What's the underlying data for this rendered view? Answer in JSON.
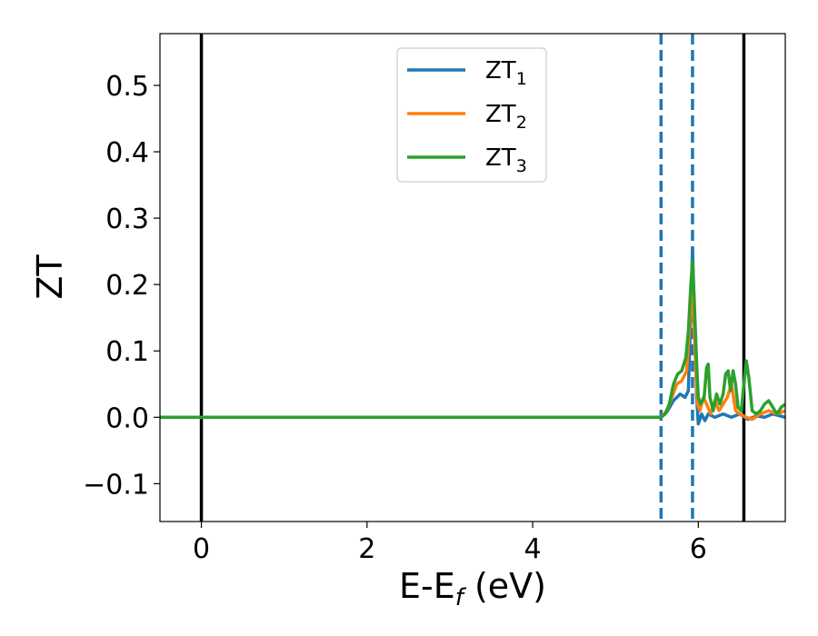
{
  "chart_data": {
    "type": "line",
    "xlabel": {
      "main": "E-E",
      "sub": "f",
      "unit": " (eV)"
    },
    "ylabel": "ZT",
    "xlim": [
      -0.5,
      7.05
    ],
    "ylim": [
      -0.157,
      0.578
    ],
    "xticks": [
      0,
      2,
      4,
      6
    ],
    "xtick_labels": [
      "0",
      "2",
      "4",
      "6"
    ],
    "yticks": [
      -0.1,
      0.0,
      0.1,
      0.2,
      0.3,
      0.4,
      0.5
    ],
    "ytick_labels": [
      "−0.1",
      "0.0",
      "0.1",
      "0.2",
      "0.3",
      "0.4",
      "0.5"
    ],
    "legend": {
      "position": "top-center",
      "entries": [
        {
          "base": "ZT",
          "sub": "1"
        },
        {
          "base": "ZT",
          "sub": "2"
        },
        {
          "base": "ZT",
          "sub": "3"
        }
      ]
    },
    "vlines": [
      {
        "x": 0.0,
        "style": "solid",
        "color": "#000000"
      },
      {
        "x": 5.55,
        "style": "dashed",
        "color": "#1f77b4"
      },
      {
        "x": 5.93,
        "style": "dashed",
        "color": "#1f77b4"
      },
      {
        "x": 6.55,
        "style": "solid",
        "color": "#000000"
      }
    ],
    "series": [
      {
        "color": "#1f77b4",
        "points": [
          [
            -0.5,
            0
          ],
          [
            5.55,
            0
          ],
          [
            5.62,
            0.008
          ],
          [
            5.7,
            0.025
          ],
          [
            5.78,
            0.035
          ],
          [
            5.84,
            0.03
          ],
          [
            5.88,
            0.04
          ],
          [
            5.9,
            0.12
          ],
          [
            5.93,
            0.255
          ],
          [
            5.96,
            0.12
          ],
          [
            5.98,
            0.03
          ],
          [
            6.0,
            -0.01
          ],
          [
            6.04,
            0.005
          ],
          [
            6.08,
            -0.005
          ],
          [
            6.12,
            0.005
          ],
          [
            6.2,
            0.0
          ],
          [
            6.3,
            0.005
          ],
          [
            6.4,
            0.0
          ],
          [
            6.5,
            0.005
          ],
          [
            6.6,
            -0.003
          ],
          [
            6.7,
            0.002
          ],
          [
            6.8,
            0.0
          ],
          [
            6.9,
            0.005
          ],
          [
            7.05,
            0.0
          ]
        ]
      },
      {
        "color": "#ff7f0e",
        "points": [
          [
            -0.5,
            0
          ],
          [
            5.55,
            0
          ],
          [
            5.62,
            0.01
          ],
          [
            5.68,
            0.03
          ],
          [
            5.74,
            0.05
          ],
          [
            5.8,
            0.055
          ],
          [
            5.86,
            0.07
          ],
          [
            5.9,
            0.15
          ],
          [
            5.93,
            0.2
          ],
          [
            5.96,
            0.1
          ],
          [
            5.99,
            0.02
          ],
          [
            6.02,
            0.01
          ],
          [
            6.06,
            0.03
          ],
          [
            6.1,
            0.02
          ],
          [
            6.15,
            0.005
          ],
          [
            6.2,
            0.025
          ],
          [
            6.25,
            0.01
          ],
          [
            6.3,
            0.02
          ],
          [
            6.35,
            0.03
          ],
          [
            6.4,
            0.05
          ],
          [
            6.45,
            0.01
          ],
          [
            6.5,
            0.005
          ],
          [
            6.58,
            0.0
          ],
          [
            6.65,
            -0.003
          ],
          [
            6.75,
            0.005
          ],
          [
            6.85,
            0.01
          ],
          [
            6.95,
            0.005
          ],
          [
            7.05,
            0.01
          ]
        ]
      },
      {
        "color": "#2ca02c",
        "points": [
          [
            -0.5,
            0
          ],
          [
            5.55,
            0
          ],
          [
            5.6,
            0.005
          ],
          [
            5.65,
            0.02
          ],
          [
            5.7,
            0.05
          ],
          [
            5.75,
            0.065
          ],
          [
            5.8,
            0.07
          ],
          [
            5.85,
            0.09
          ],
          [
            5.88,
            0.13
          ],
          [
            5.91,
            0.2
          ],
          [
            5.93,
            0.235
          ],
          [
            5.95,
            0.18
          ],
          [
            5.98,
            0.08
          ],
          [
            6.0,
            0.03
          ],
          [
            6.03,
            0.02
          ],
          [
            6.07,
            0.03
          ],
          [
            6.1,
            0.075
          ],
          [
            6.12,
            0.08
          ],
          [
            6.14,
            0.03
          ],
          [
            6.18,
            0.01
          ],
          [
            6.22,
            0.035
          ],
          [
            6.26,
            0.02
          ],
          [
            6.3,
            0.035
          ],
          [
            6.33,
            0.065
          ],
          [
            6.36,
            0.07
          ],
          [
            6.39,
            0.04
          ],
          [
            6.42,
            0.07
          ],
          [
            6.45,
            0.05
          ],
          [
            6.48,
            0.015
          ],
          [
            6.52,
            0.01
          ],
          [
            6.55,
            0.05
          ],
          [
            6.58,
            0.085
          ],
          [
            6.61,
            0.06
          ],
          [
            6.65,
            0.01
          ],
          [
            6.7,
            0.005
          ],
          [
            6.75,
            0.01
          ],
          [
            6.8,
            0.02
          ],
          [
            6.85,
            0.025
          ],
          [
            6.9,
            0.015
          ],
          [
            6.95,
            0.005
          ],
          [
            7.0,
            0.015
          ],
          [
            7.05,
            0.02
          ]
        ]
      }
    ]
  }
}
